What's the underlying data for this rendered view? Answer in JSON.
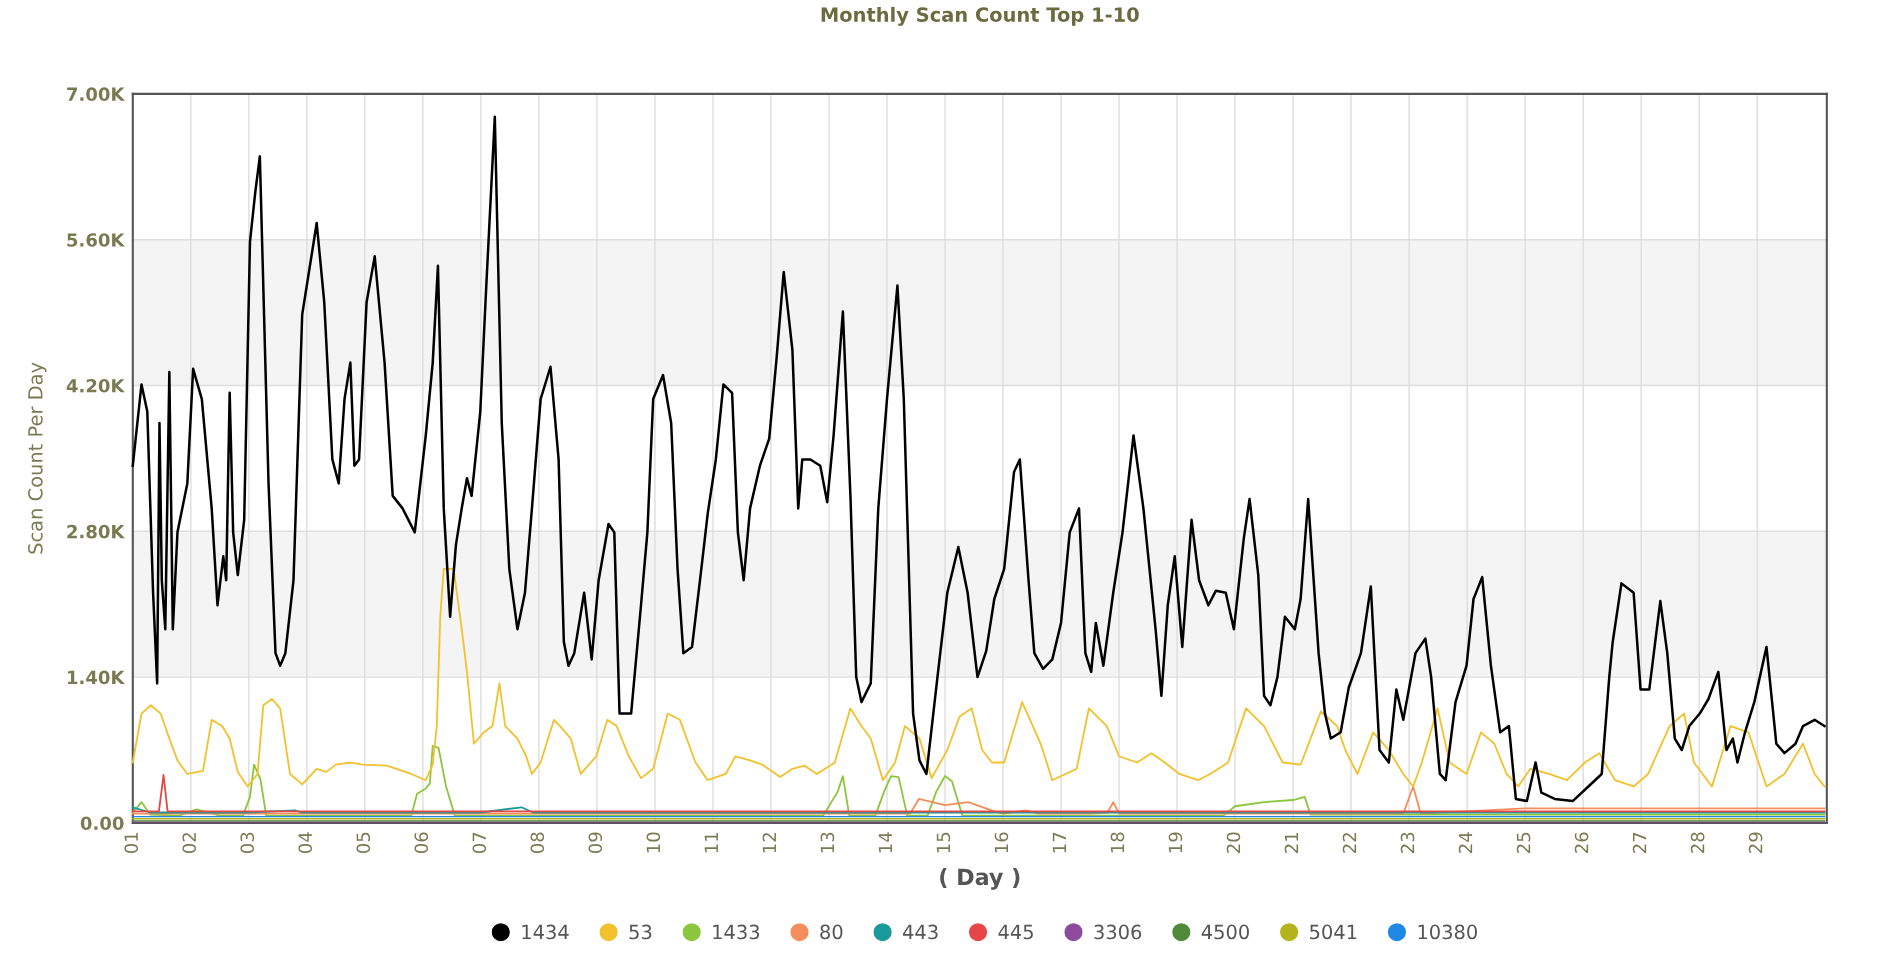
{
  "chart_data": {
    "type": "line",
    "title": "Monthly Scan Count Top 1-10",
    "xlabel": "( Day )",
    "ylabel": "Scan Count Per Day",
    "xlim": [
      1,
      30.2
    ],
    "xticks": [
      {
        "value": 1,
        "label": "01"
      },
      {
        "value": 2,
        "label": "02"
      },
      {
        "value": 3,
        "label": "03"
      },
      {
        "value": 4,
        "label": "04"
      },
      {
        "value": 5,
        "label": "05"
      },
      {
        "value": 6,
        "label": "06"
      },
      {
        "value": 7,
        "label": "07"
      },
      {
        "value": 8,
        "label": "08"
      },
      {
        "value": 9,
        "label": "09"
      },
      {
        "value": 10,
        "label": "10"
      },
      {
        "value": 11,
        "label": "11"
      },
      {
        "value": 12,
        "label": "12"
      },
      {
        "value": 13,
        "label": "13"
      },
      {
        "value": 14,
        "label": "14"
      },
      {
        "value": 15,
        "label": "15"
      },
      {
        "value": 16,
        "label": "16"
      },
      {
        "value": 17,
        "label": "17"
      },
      {
        "value": 18,
        "label": "18"
      },
      {
        "value": 19,
        "label": "19"
      },
      {
        "value": 20,
        "label": "20"
      },
      {
        "value": 21,
        "label": "21"
      },
      {
        "value": 22,
        "label": "22"
      },
      {
        "value": 23,
        "label": "23"
      },
      {
        "value": 24,
        "label": "24"
      },
      {
        "value": 25,
        "label": "25"
      },
      {
        "value": 26,
        "label": "26"
      },
      {
        "value": 27,
        "label": "27"
      },
      {
        "value": 28,
        "label": "28"
      },
      {
        "value": 29,
        "label": "29"
      }
    ],
    "ylim": [
      0,
      7000
    ],
    "yticks": [
      {
        "value": 0,
        "label": "0.00"
      },
      {
        "value": 1400,
        "label": "1.40K"
      },
      {
        "value": 2800,
        "label": "2.80K"
      },
      {
        "value": 4200,
        "label": "4.20K"
      },
      {
        "value": 5600,
        "label": "5.60K"
      },
      {
        "value": 7000,
        "label": "7.00K"
      }
    ],
    "grid": true,
    "legend": "bottom",
    "marker": "none",
    "line_style": "solid",
    "bands": [
      {
        "axis": "y",
        "from": 1400,
        "to": 2800,
        "color": "#f4f4f4"
      },
      {
        "axis": "y",
        "from": 4200,
        "to": 5600,
        "color": "#f4f4f4"
      }
    ],
    "series": [
      {
        "name": "1434",
        "color": "#000000",
        "x": [
          1.0,
          1.15,
          1.25,
          1.35,
          1.42,
          1.46,
          1.5,
          1.56,
          1.63,
          1.69,
          1.77,
          1.94,
          2.04,
          2.19,
          2.36,
          2.46,
          2.56,
          2.61,
          2.67,
          2.73,
          2.81,
          2.92,
          3.02,
          3.11,
          3.19,
          3.34,
          3.46,
          3.54,
          3.63,
          3.77,
          3.92,
          4.17,
          4.3,
          4.44,
          4.55,
          4.65,
          4.75,
          4.82,
          4.9,
          5.03,
          5.17,
          5.34,
          5.48,
          5.65,
          5.86,
          6.05,
          6.17,
          6.26,
          6.36,
          6.47,
          6.57,
          6.67,
          6.76,
          6.84,
          6.99,
          7.09,
          7.24,
          7.36,
          7.49,
          7.63,
          7.76,
          7.88,
          8.03,
          8.2,
          8.34,
          8.43,
          8.51,
          8.61,
          8.78,
          8.91,
          9.03,
          9.2,
          9.3,
          9.39,
          9.59,
          9.76,
          9.87,
          9.97,
          10.14,
          10.28,
          10.39,
          10.49,
          10.64,
          10.8,
          10.91,
          11.05,
          11.18,
          11.33,
          11.43,
          11.53,
          11.64,
          11.81,
          11.97,
          12.1,
          12.22,
          12.37,
          12.47,
          12.54,
          12.68,
          12.85,
          12.97,
          13.08,
          13.24,
          13.37,
          13.47,
          13.56,
          13.72,
          13.85,
          14.0,
          14.18,
          14.29,
          14.45,
          14.56,
          14.68,
          14.87,
          15.04,
          15.23,
          15.39,
          15.56,
          15.71,
          15.85,
          16.02,
          16.19,
          16.29,
          16.44,
          16.54,
          16.69,
          16.85,
          17.0,
          17.15,
          17.31,
          17.42,
          17.52,
          17.6,
          17.73,
          17.9,
          18.06,
          18.25,
          18.42,
          18.63,
          18.73,
          18.84,
          18.96,
          19.09,
          19.25,
          19.38,
          19.54,
          19.67,
          19.84,
          19.98,
          20.15,
          20.25,
          20.4,
          20.5,
          20.61,
          20.73,
          20.86,
          21.03,
          21.13,
          21.26,
          21.44,
          21.55,
          21.65,
          21.82,
          21.96,
          22.17,
          22.34,
          22.49,
          22.65,
          22.78,
          22.9,
          23.11,
          23.28,
          23.38,
          23.53,
          23.63,
          23.8,
          23.99,
          24.11,
          24.26,
          24.41,
          24.57,
          24.72,
          24.84,
          25.03,
          25.18,
          25.28,
          25.51,
          25.82,
          26.09,
          26.32,
          26.45,
          26.51,
          26.66,
          26.87,
          26.99,
          27.14,
          27.33,
          27.45,
          27.58,
          27.7,
          27.83,
          28.01,
          28.16,
          28.33,
          28.47,
          28.58,
          28.66,
          28.79,
          28.95,
          29.16,
          29.33,
          29.47,
          29.66,
          29.79,
          29.99,
          30.16
        ],
        "values": [
          3430,
          4210,
          3950,
          2210,
          1340,
          3840,
          2330,
          1860,
          4330,
          1860,
          2790,
          3260,
          4360,
          4070,
          3020,
          2090,
          2560,
          2330,
          4130,
          2790,
          2380,
          2910,
          5580,
          6050,
          6400,
          3260,
          1630,
          1510,
          1630,
          2330,
          4880,
          5760,
          5000,
          3490,
          3260,
          4070,
          4420,
          3430,
          3490,
          5000,
          5440,
          4420,
          3140,
          3020,
          2790,
          3720,
          4420,
          5350,
          3020,
          1980,
          2670,
          3020,
          3310,
          3140,
          3950,
          5120,
          6780,
          3840,
          2440,
          1860,
          2210,
          3020,
          4070,
          4380,
          3490,
          1740,
          1510,
          1630,
          2210,
          1570,
          2330,
          2870,
          2790,
          1050,
          1050,
          2090,
          2790,
          4070,
          4300,
          3840,
          2440,
          1630,
          1690,
          2440,
          2970,
          3490,
          4210,
          4130,
          2790,
          2330,
          3020,
          3430,
          3690,
          4480,
          5290,
          4540,
          3020,
          3490,
          3490,
          3430,
          3080,
          3720,
          4910,
          3140,
          1400,
          1160,
          1340,
          3020,
          4070,
          5160,
          4070,
          1050,
          600,
          470,
          1400,
          2210,
          2650,
          2210,
          1400,
          1650,
          2150,
          2440,
          3370,
          3490,
          2330,
          1630,
          1480,
          1570,
          1920,
          2790,
          3020,
          1630,
          1450,
          1920,
          1510,
          2210,
          2790,
          3720,
          3020,
          1860,
          1220,
          2090,
          2560,
          1690,
          2910,
          2330,
          2090,
          2230,
          2210,
          1860,
          2730,
          3110,
          2380,
          1220,
          1130,
          1400,
          1980,
          1860,
          2150,
          3110,
          1630,
          1050,
          810,
          870,
          1300,
          1630,
          2270,
          700,
          580,
          1280,
          990,
          1630,
          1770,
          1400,
          470,
          410,
          1160,
          1510,
          2150,
          2360,
          1510,
          870,
          930,
          230,
          210,
          580,
          290,
          230,
          210,
          350,
          470,
          1400,
          1740,
          2300,
          2210,
          1280,
          1280,
          2130,
          1630,
          810,
          700,
          930,
          1050,
          1190,
          1450,
          700,
          810,
          580,
          870,
          1160,
          1690,
          760,
          670,
          760,
          930,
          990,
          930
        ]
      },
      {
        "name": "53",
        "color": "#f2c12e",
        "x": [
          1.0,
          1.15,
          1.31,
          1.48,
          1.63,
          1.77,
          1.94,
          2.21,
          2.36,
          2.54,
          2.67,
          2.81,
          2.98,
          3.15,
          3.25,
          3.4,
          3.54,
          3.71,
          3.92,
          4.17,
          4.34,
          4.5,
          4.75,
          4.96,
          5.38,
          5.8,
          6.05,
          6.17,
          6.24,
          6.3,
          6.36,
          6.53,
          6.67,
          6.76,
          6.88,
          7.05,
          7.2,
          7.32,
          7.42,
          7.63,
          7.78,
          7.88,
          8.03,
          8.26,
          8.41,
          8.55,
          8.72,
          8.99,
          9.18,
          9.34,
          9.55,
          9.76,
          9.97,
          10.22,
          10.43,
          10.7,
          10.91,
          11.22,
          11.39,
          11.64,
          11.85,
          12.16,
          12.37,
          12.58,
          12.79,
          13.1,
          13.37,
          13.56,
          13.72,
          13.93,
          14.14,
          14.31,
          14.56,
          14.77,
          15.04,
          15.25,
          15.46,
          15.64,
          15.81,
          16.02,
          16.33,
          16.65,
          16.85,
          17.27,
          17.48,
          17.79,
          18.0,
          18.31,
          18.56,
          18.79,
          19.04,
          19.36,
          19.57,
          19.88,
          20.19,
          20.5,
          20.82,
          21.13,
          21.48,
          21.76,
          21.9,
          22.11,
          22.38,
          22.65,
          22.9,
          23.07,
          23.22,
          23.49,
          23.7,
          23.99,
          24.24,
          24.47,
          24.68,
          24.88,
          25.09,
          25.41,
          25.72,
          26.03,
          26.28,
          26.55,
          26.87,
          27.12,
          27.49,
          27.74,
          27.91,
          28.22,
          28.54,
          28.85,
          29.16,
          29.47,
          29.79,
          29.99,
          30.16
        ],
        "values": [
          580,
          1050,
          1130,
          1050,
          810,
          600,
          470,
          500,
          990,
          930,
          810,
          490,
          350,
          470,
          1130,
          1190,
          1100,
          470,
          370,
          520,
          490,
          560,
          580,
          560,
          550,
          470,
          410,
          560,
          930,
          1980,
          2440,
          2440,
          1860,
          1450,
          760,
          870,
          930,
          1340,
          930,
          810,
          640,
          470,
          580,
          990,
          900,
          810,
          470,
          640,
          990,
          930,
          640,
          430,
          520,
          1050,
          990,
          580,
          410,
          470,
          640,
          600,
          560,
          440,
          520,
          550,
          470,
          580,
          1100,
          930,
          810,
          410,
          580,
          930,
          810,
          430,
          700,
          1020,
          1100,
          700,
          580,
          580,
          1160,
          760,
          410,
          520,
          1100,
          930,
          640,
          580,
          670,
          580,
          470,
          410,
          470,
          580,
          1100,
          930,
          580,
          560,
          1070,
          930,
          700,
          470,
          870,
          700,
          470,
          350,
          580,
          1100,
          580,
          470,
          870,
          760,
          470,
          350,
          520,
          470,
          410,
          580,
          670,
          410,
          350,
          470,
          930,
          1050,
          580,
          350,
          930,
          870,
          350,
          470,
          760,
          470,
          350
        ]
      },
      {
        "name": "1433",
        "color": "#8cc63e",
        "x": [
          1.0,
          1.15,
          1.3,
          1.8,
          2.1,
          2.5,
          2.9,
          3.02,
          3.09,
          3.2,
          3.3,
          4.0,
          5.0,
          5.8,
          5.9,
          6.05,
          6.12,
          6.17,
          6.27,
          6.4,
          6.55,
          7.0,
          8.0,
          9.0,
          10.0,
          11.0,
          12.0,
          12.9,
          13.15,
          13.24,
          13.35,
          13.8,
          13.95,
          14.07,
          14.2,
          14.35,
          14.7,
          14.85,
          15.0,
          15.12,
          15.3,
          16.0,
          17.0,
          18.0,
          19.0,
          19.8,
          20.0,
          20.5,
          21.0,
          21.2,
          21.3,
          22.0,
          24.0,
          26.0,
          28.0,
          30.16
        ],
        "values": [
          100,
          200,
          80,
          70,
          130,
          70,
          70,
          250,
          560,
          420,
          70,
          70,
          70,
          70,
          280,
          330,
          380,
          740,
          720,
          350,
          70,
          70,
          70,
          70,
          70,
          70,
          70,
          70,
          300,
          450,
          70,
          70,
          300,
          450,
          440,
          70,
          70,
          300,
          450,
          400,
          70,
          70,
          70,
          70,
          70,
          70,
          160,
          200,
          220,
          250,
          80,
          80,
          80,
          80,
          80,
          80
        ]
      },
      {
        "name": "80",
        "color": "#f58d5a",
        "x": [
          1.0,
          5.0,
          7.0,
          9.0,
          12.0,
          13.6,
          14.4,
          14.55,
          15.0,
          15.4,
          15.8,
          16.0,
          16.4,
          16.6,
          17.5,
          17.8,
          17.9,
          18.0,
          20.0,
          22.9,
          23.07,
          23.2,
          25.0,
          27.7,
          29.0,
          30.16
        ],
        "values": [
          90,
          90,
          90,
          90,
          90,
          90,
          90,
          230,
          170,
          200,
          120,
          90,
          120,
          90,
          90,
          100,
          200,
          90,
          90,
          90,
          350,
          90,
          140,
          140,
          140,
          140
        ]
      },
      {
        "name": "443",
        "color": "#1a9a9a",
        "x": [
          1.0,
          1.3,
          2.0,
          3.0,
          3.8,
          3.9,
          5.0,
          7.0,
          7.7,
          7.9,
          8.5,
          10.0,
          20.0,
          30.16
        ],
        "values": [
          150,
          100,
          100,
          100,
          120,
          100,
          100,
          100,
          150,
          100,
          100,
          100,
          100,
          100
        ]
      },
      {
        "name": "445",
        "color": "#e54646",
        "x": [
          1.0,
          1.45,
          1.53,
          1.6,
          10.0,
          16.4,
          23.0,
          24.5,
          29.4,
          30.16
        ],
        "values": [
          110,
          110,
          460,
          110,
          110,
          110,
          110,
          110,
          110,
          110
        ]
      },
      {
        "name": "3306",
        "color": "#8e4b9e",
        "x": [
          1.0,
          10.0,
          20.0,
          30.16
        ],
        "values": [
          10,
          10,
          10,
          10
        ]
      },
      {
        "name": "4500",
        "color": "#4f8a3a",
        "x": [
          1.0,
          10.0,
          20.0,
          30.16
        ],
        "values": [
          20,
          20,
          20,
          20
        ]
      },
      {
        "name": "5041",
        "color": "#b3b31c",
        "x": [
          1.0,
          10.0,
          20.0,
          30.16
        ],
        "values": [
          40,
          40,
          40,
          40
        ]
      },
      {
        "name": "10380",
        "color": "#1e88e5",
        "x": [
          1.0,
          10.0,
          20.0,
          30.16
        ],
        "values": [
          60,
          60,
          60,
          60
        ]
      }
    ]
  }
}
